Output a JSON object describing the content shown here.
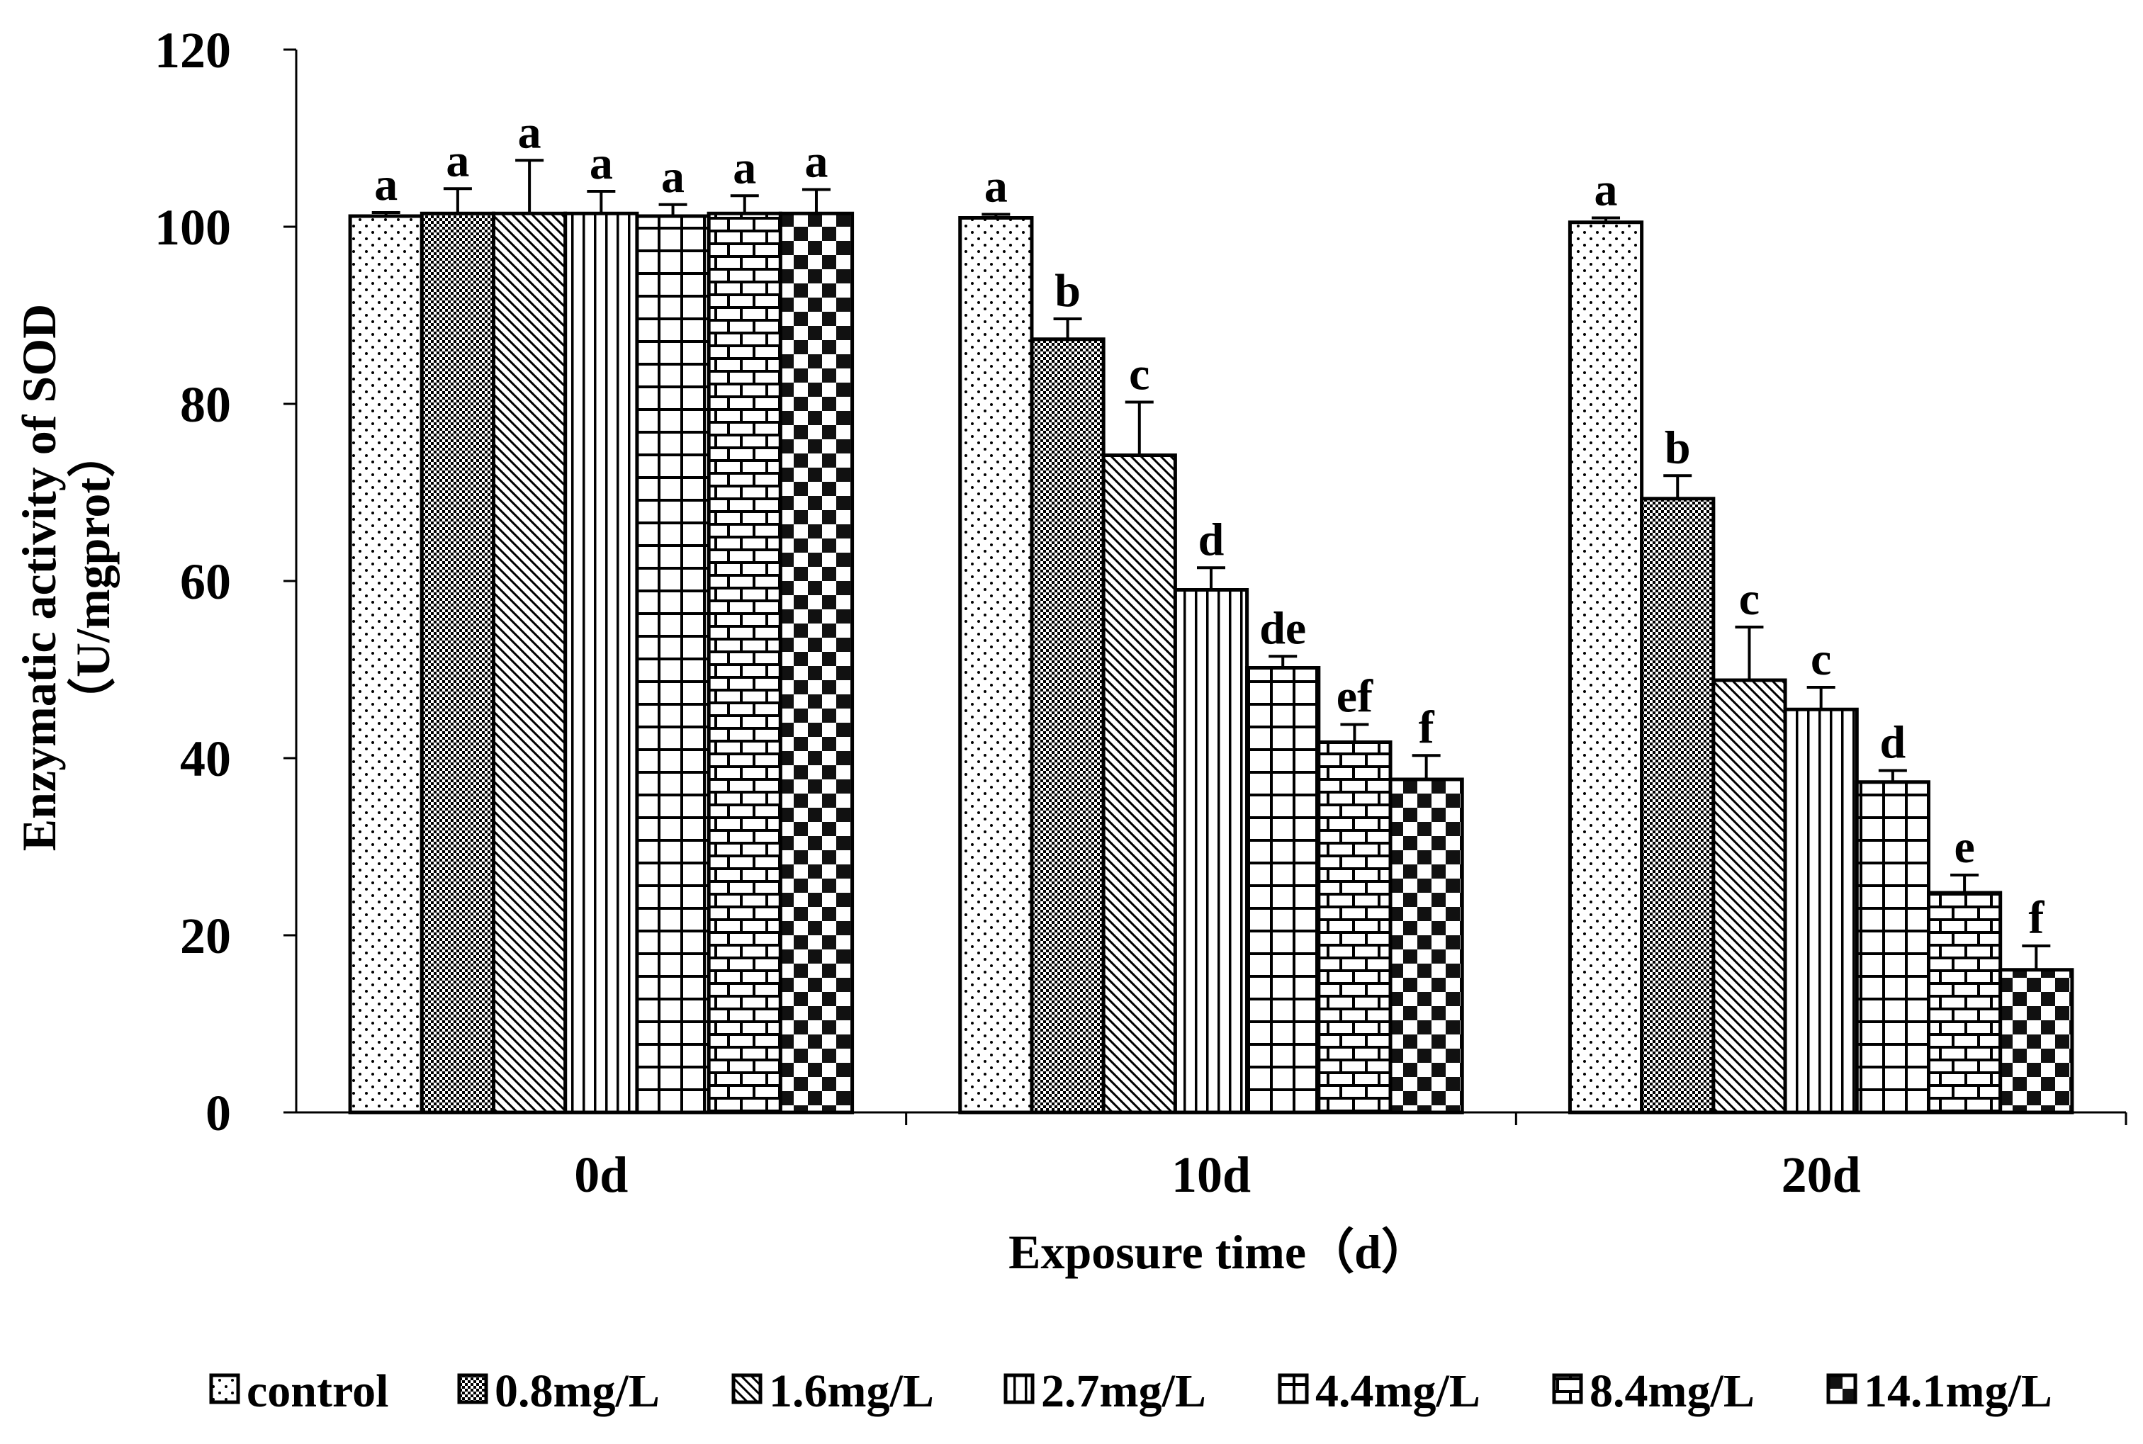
{
  "chart_data": {
    "type": "bar",
    "title": "",
    "xlabel": "Exposure time（d）",
    "ylabel_line1": "Enzymatic activity of SOD",
    "ylabel_line2": "（U/mgprot）",
    "ylim": [
      0,
      120
    ],
    "yticks": [
      0,
      20,
      40,
      60,
      80,
      100,
      120
    ],
    "ytick_labels": [
      "0",
      "20",
      "40",
      "60",
      "80",
      "100",
      "120"
    ],
    "categories": [
      "0d",
      "10d",
      "20d"
    ],
    "legend_position": "bottom",
    "series": [
      {
        "name": "control",
        "pattern": "dots",
        "values": [
          101.2,
          101.0,
          100.5
        ],
        "errors": [
          0.4,
          0.4,
          0.5
        ],
        "labels": [
          "a",
          "a",
          "a"
        ]
      },
      {
        "name": "0.8mg/L",
        "pattern": "fine-check",
        "values": [
          101.5,
          87.3,
          69.3
        ],
        "errors": [
          2.8,
          2.3,
          2.6
        ],
        "labels": [
          "a",
          "b",
          "b"
        ]
      },
      {
        "name": "1.6mg/L",
        "pattern": "diagonal",
        "values": [
          101.5,
          74.2,
          48.8
        ],
        "errors": [
          6.0,
          6.0,
          6.0
        ],
        "labels": [
          "a",
          "c",
          "c"
        ]
      },
      {
        "name": "2.7mg/L",
        "pattern": "vertical",
        "values": [
          101.5,
          59.0,
          45.5
        ],
        "errors": [
          2.5,
          2.5,
          2.5
        ],
        "labels": [
          "a",
          "d",
          "c"
        ]
      },
      {
        "name": "4.4mg/L",
        "pattern": "grid",
        "values": [
          101.2,
          50.2,
          37.3
        ],
        "errors": [
          1.3,
          1.3,
          1.3
        ],
        "labels": [
          "a",
          "de",
          "d"
        ]
      },
      {
        "name": "8.4mg/L",
        "pattern": "brick",
        "values": [
          101.5,
          41.8,
          24.8
        ],
        "errors": [
          2.0,
          2.0,
          2.0
        ],
        "labels": [
          "a",
          "ef",
          "e"
        ]
      },
      {
        "name": "14.1mg/L",
        "pattern": "checker",
        "values": [
          101.5,
          37.6,
          16.1
        ],
        "errors": [
          2.7,
          2.7,
          2.7
        ],
        "labels": [
          "a",
          "f",
          "f"
        ]
      }
    ]
  }
}
